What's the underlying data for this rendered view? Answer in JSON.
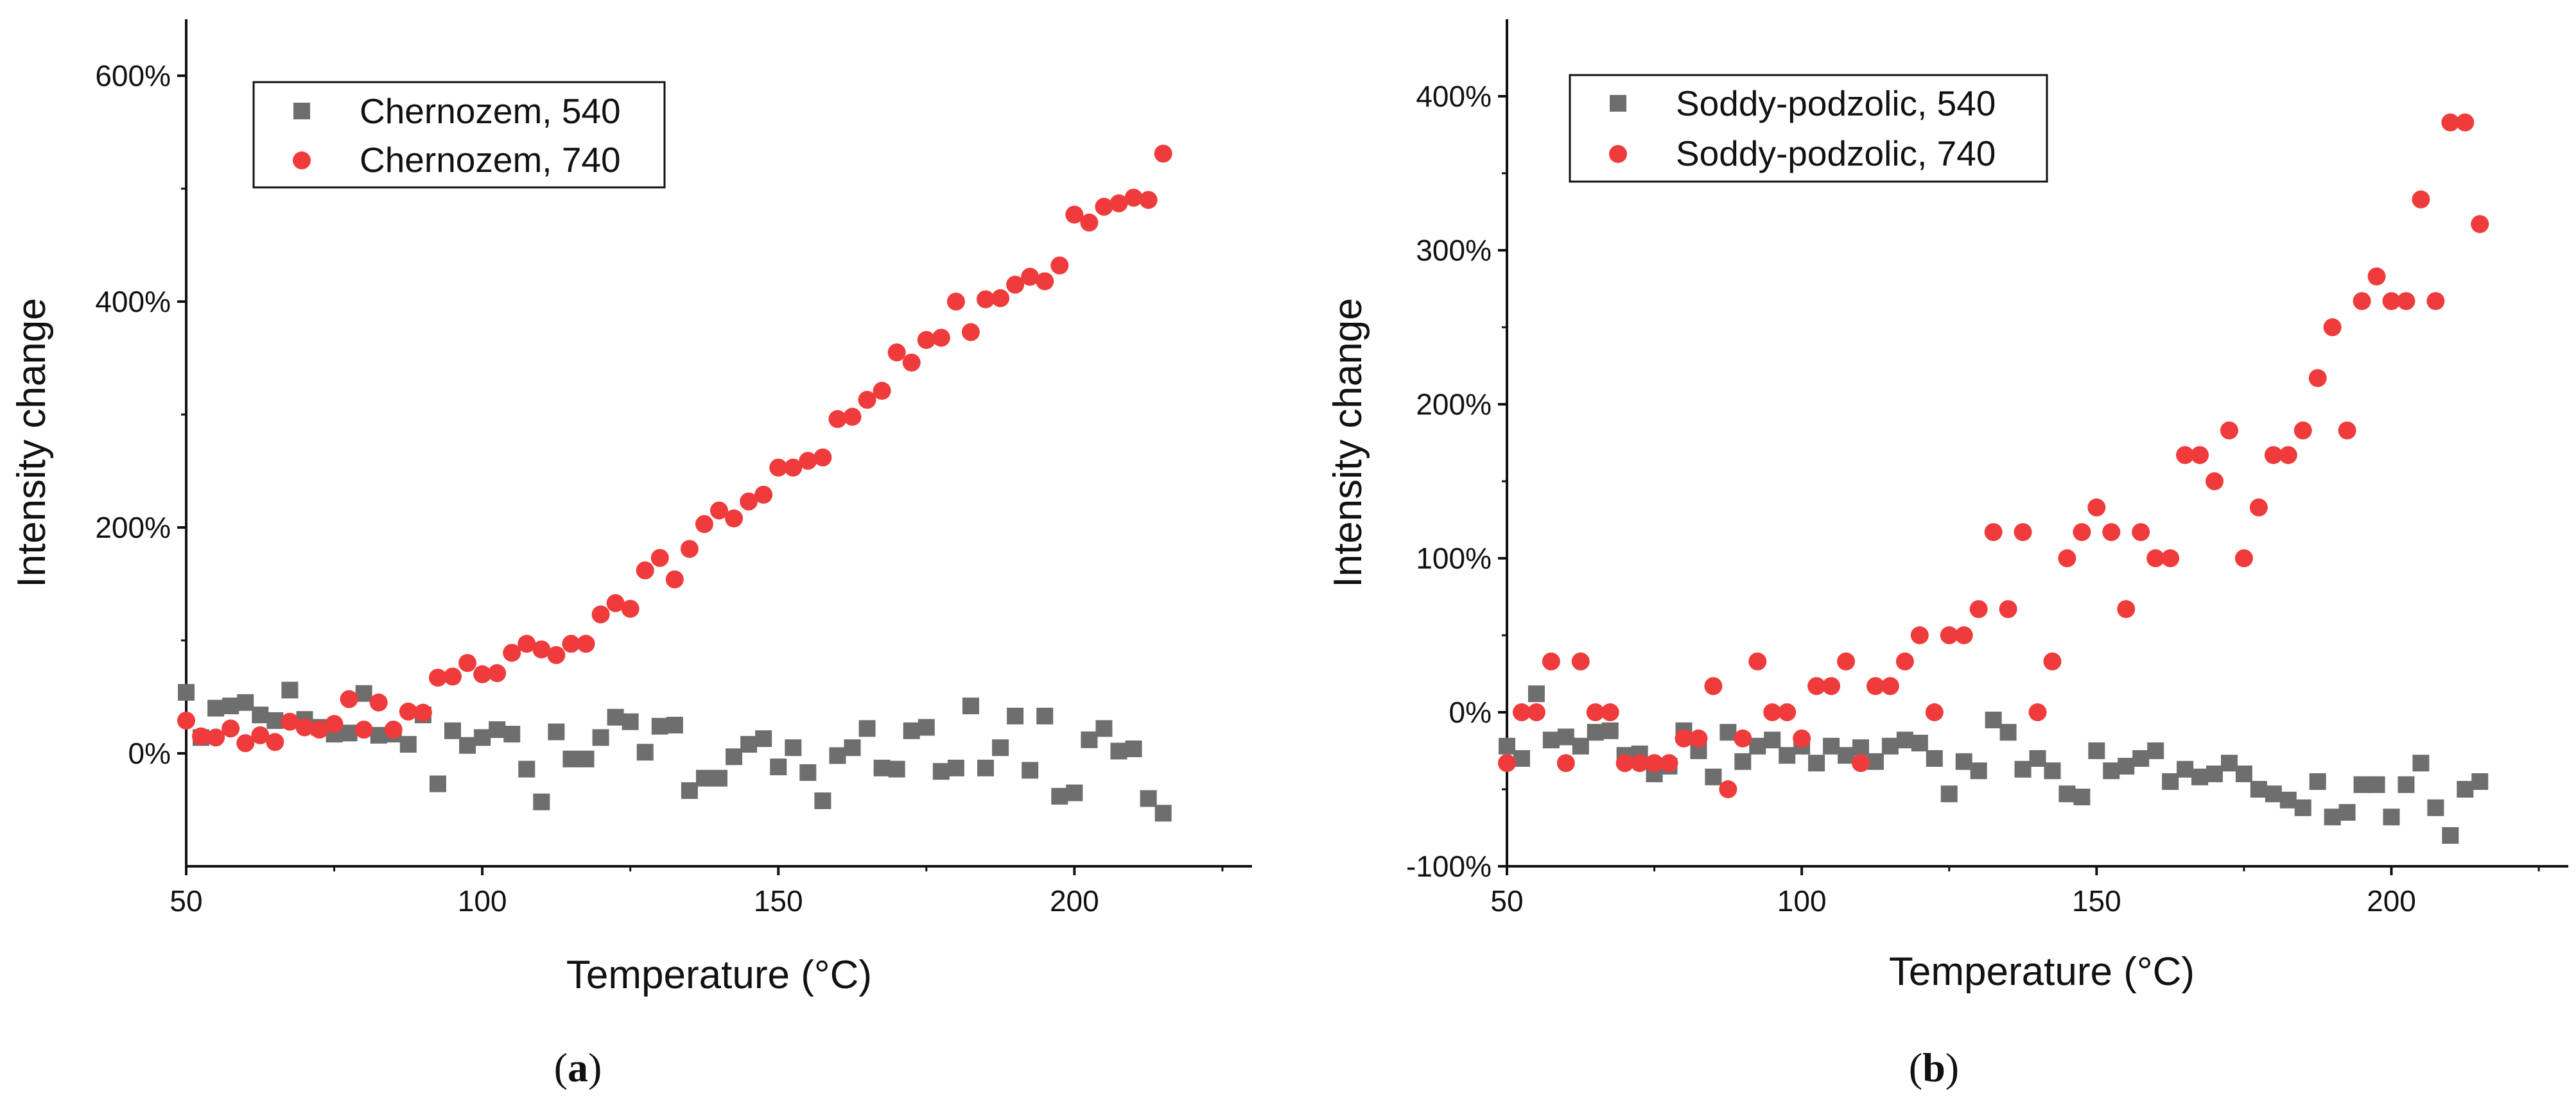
{
  "chart_data": [
    {
      "type": "scatter",
      "panel_label": {
        "open": "(",
        "letter": "a",
        "close": ")"
      },
      "xlabel": "Temperature (°C)",
      "ylabel": "Intensity change",
      "xlim": [
        50,
        230
      ],
      "ylim": [
        -100,
        650
      ],
      "xticks": [
        50,
        100,
        150,
        200
      ],
      "xtick_labels": [
        "50",
        "100",
        "150",
        "200"
      ],
      "yticks": [
        0,
        200,
        400,
        600
      ],
      "ytick_labels": [
        "0%",
        "200%",
        "400%",
        "600%"
      ],
      "legend_position": "top-left",
      "series": [
        {
          "name": "Chernozem, 540",
          "marker": "square",
          "color": "#6e6e6e",
          "x": [
            50,
            52.5,
            55,
            57.5,
            60,
            62.5,
            65,
            67.5,
            70,
            72.5,
            75,
            77.5,
            80,
            82.5,
            85,
            87.5,
            90,
            92.5,
            95,
            97.5,
            100,
            102.5,
            105,
            107.5,
            110,
            112.5,
            115,
            117.5,
            120,
            122.5,
            125,
            127.5,
            130,
            132.5,
            135,
            137.5,
            140,
            142.5,
            145,
            147.5,
            150,
            152.5,
            155,
            157.5,
            160,
            162.5,
            165,
            167.5,
            170,
            172.5,
            175,
            177.5,
            180,
            182.5,
            185,
            187.5,
            190,
            192.5,
            195,
            197.5,
            200,
            202.5,
            205,
            207.5,
            210,
            212.5,
            215
          ],
          "y": [
            54,
            14,
            40,
            42,
            45,
            34,
            29,
            56,
            30,
            23,
            17,
            18,
            53,
            16,
            17,
            8,
            34,
            -27,
            20,
            7,
            14,
            21,
            17,
            -14,
            -43,
            19,
            -5,
            -5,
            14,
            32,
            28,
            1,
            24,
            25,
            -33,
            -22,
            -22,
            -3,
            8,
            13,
            -12,
            5,
            -17,
            -42,
            -2,
            5,
            22,
            -13,
            -14,
            20,
            23,
            -16,
            -13,
            42,
            -13,
            5,
            33,
            -15,
            33,
            -38,
            -35,
            12,
            22,
            2,
            4,
            -40,
            -53
          ]
        },
        {
          "name": "Chernozem, 740",
          "marker": "circle",
          "color": "#ef3b3b",
          "x": [
            50,
            52.5,
            55,
            57.5,
            60,
            62.5,
            65,
            67.5,
            70,
            72.5,
            75,
            77.5,
            80,
            82.5,
            85,
            87.5,
            90,
            92.5,
            95,
            97.5,
            100,
            102.5,
            105,
            107.5,
            110,
            112.5,
            115,
            117.5,
            120,
            122.5,
            125,
            127.5,
            130,
            132.5,
            135,
            137.5,
            140,
            142.5,
            145,
            147.5,
            150,
            152.5,
            155,
            157.5,
            160,
            162.5,
            165,
            167.5,
            170,
            172.5,
            175,
            177.5,
            180,
            182.5,
            185,
            187.5,
            190,
            192.5,
            195,
            197.5,
            200,
            202.5,
            205,
            207.5,
            210,
            212.5,
            215
          ],
          "y": [
            29,
            15,
            14,
            22,
            9,
            16,
            10,
            28,
            23,
            21,
            26,
            48,
            21,
            45,
            21,
            37,
            36,
            67,
            68,
            80,
            70,
            71,
            89,
            97,
            92,
            87,
            97,
            97,
            123,
            133,
            128,
            162,
            173,
            154,
            181,
            203,
            215,
            208,
            223,
            229,
            253,
            253,
            259,
            262,
            296,
            298,
            313,
            321,
            355,
            346,
            366,
            368,
            400,
            373,
            402,
            403,
            415,
            422,
            418,
            432,
            477,
            470,
            484,
            487,
            492,
            490,
            531
          ]
        }
      ]
    },
    {
      "type": "scatter",
      "panel_label": {
        "open": "(",
        "letter": "b",
        "close": ")"
      },
      "xlabel": "Temperature (°C)",
      "ylabel": "Intensity change",
      "xlim": [
        50,
        230
      ],
      "ylim": [
        -100,
        450
      ],
      "xticks": [
        50,
        100,
        150,
        200
      ],
      "xtick_labels": [
        "50",
        "100",
        "150",
        "200"
      ],
      "yticks": [
        -100,
        0,
        100,
        200,
        300,
        400
      ],
      "ytick_labels": [
        "-100%",
        "0%",
        "100%",
        "200%",
        "300%",
        "400%"
      ],
      "legend_position": "top-left",
      "series": [
        {
          "name": "Soddy-podzolic, 540",
          "marker": "square",
          "color": "#6e6e6e",
          "x": [
            50,
            52.5,
            55,
            57.5,
            60,
            62.5,
            65,
            67.5,
            70,
            72.5,
            75,
            77.5,
            80,
            82.5,
            85,
            87.5,
            90,
            92.5,
            95,
            97.5,
            100,
            102.5,
            105,
            107.5,
            110,
            112.5,
            115,
            117.5,
            120,
            122.5,
            125,
            127.5,
            130,
            132.5,
            135,
            137.5,
            140,
            142.5,
            145,
            147.5,
            150,
            152.5,
            155,
            157.5,
            160,
            162.5,
            165,
            167.5,
            170,
            172.5,
            175,
            177.5,
            180,
            182.5,
            185,
            187.5,
            190,
            192.5,
            195,
            197.5,
            200,
            202.5,
            205,
            207.5,
            210,
            212.5,
            215
          ],
          "y": [
            -22,
            -30,
            12,
            -18,
            -16,
            -22,
            -13,
            -12,
            -28,
            -27,
            -40,
            -35,
            -12,
            -25,
            -42,
            -13,
            -32,
            -22,
            -18,
            -28,
            -22,
            -33,
            -22,
            -28,
            -23,
            -32,
            -22,
            -18,
            -20,
            -30,
            -53,
            -32,
            -38,
            -5,
            -13,
            -37,
            -30,
            -38,
            -53,
            -55,
            -25,
            -38,
            -35,
            -30,
            -25,
            -45,
            -37,
            -42,
            -40,
            -33,
            -40,
            -50,
            -53,
            -57,
            -62,
            -45,
            -68,
            -65,
            -47,
            -47,
            -68,
            -47,
            -33,
            -62,
            -80,
            -50,
            -45
          ]
        },
        {
          "name": "Soddy-podzolic, 740",
          "marker": "circle",
          "color": "#ef3b3b",
          "x": [
            50,
            52.5,
            55,
            57.5,
            60,
            62.5,
            65,
            67.5,
            70,
            72.5,
            75,
            77.5,
            80,
            82.5,
            85,
            87.5,
            90,
            92.5,
            95,
            97.5,
            100,
            102.5,
            105,
            107.5,
            110,
            112.5,
            115,
            117.5,
            120,
            122.5,
            125,
            127.5,
            130,
            132.5,
            135,
            137.5,
            140,
            142.5,
            145,
            147.5,
            150,
            152.5,
            155,
            157.5,
            160,
            162.5,
            165,
            167.5,
            170,
            172.5,
            175,
            177.5,
            180,
            182.5,
            185,
            187.5,
            190,
            192.5,
            195,
            197.5,
            200,
            202.5,
            205,
            207.5,
            210,
            212.5,
            215
          ],
          "y": [
            -33,
            0,
            0,
            33,
            -33,
            33,
            0,
            0,
            -33,
            -33,
            -33,
            -33,
            -17,
            -17,
            17,
            -50,
            -17,
            33,
            0,
            0,
            -17,
            17,
            17,
            33,
            -33,
            17,
            17,
            33,
            50,
            0,
            50,
            50,
            67,
            117,
            67,
            117,
            0,
            33,
            100,
            117,
            133,
            117,
            67,
            117,
            100,
            100,
            167,
            167,
            150,
            183,
            100,
            133,
            167,
            167,
            183,
            217,
            250,
            183,
            267,
            283,
            267,
            267,
            333,
            267,
            383,
            383,
            317
          ]
        }
      ]
    }
  ]
}
